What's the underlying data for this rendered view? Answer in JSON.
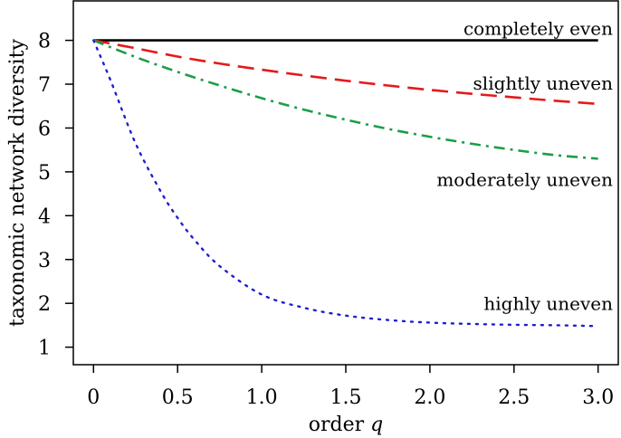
{
  "chart_data": {
    "type": "line",
    "xlabel_prefix": "order ",
    "xlabel_var": "q",
    "ylabel": "taxonomic network diversity",
    "xlim": [
      -0.12,
      3.12
    ],
    "ylim": [
      0.6,
      8.9
    ],
    "x_ticks": [
      0,
      0.5,
      1.0,
      1.5,
      2.0,
      2.5,
      3.0
    ],
    "x_tick_labels": [
      "0",
      "0.5",
      "1.0",
      "1.5",
      "2.0",
      "2.5",
      "3.0"
    ],
    "y_ticks": [
      1,
      2,
      3,
      4,
      5,
      6,
      7,
      8
    ],
    "y_tick_labels": [
      "1",
      "2",
      "3",
      "4",
      "5",
      "6",
      "7",
      "8"
    ],
    "grid": false,
    "legend": "none",
    "series": [
      {
        "label": "completely even",
        "color": "#000000",
        "dash": "solid",
        "x": [
          0,
          0.25,
          0.5,
          0.75,
          1.0,
          1.25,
          1.5,
          1.75,
          2.0,
          2.25,
          2.5,
          2.75,
          3.0
        ],
        "y": [
          8,
          8,
          8,
          8,
          8,
          8,
          8,
          8,
          8,
          8,
          8,
          8,
          8
        ]
      },
      {
        "label": "slightly uneven",
        "color": "#e41a1c",
        "dash": "dashed",
        "x": [
          0,
          0.25,
          0.5,
          0.75,
          1.0,
          1.25,
          1.5,
          1.75,
          2.0,
          2.25,
          2.5,
          2.75,
          3.0
        ],
        "y": [
          8.0,
          7.82,
          7.63,
          7.47,
          7.33,
          7.2,
          7.08,
          6.97,
          6.87,
          6.78,
          6.7,
          6.62,
          6.55
        ]
      },
      {
        "label": "moderately uneven",
        "color": "#1b9e4a",
        "dash": "dashdot",
        "x": [
          0,
          0.25,
          0.5,
          0.75,
          1.0,
          1.25,
          1.5,
          1.75,
          2.0,
          2.25,
          2.5,
          2.75,
          3.0
        ],
        "y": [
          8.0,
          7.62,
          7.28,
          6.97,
          6.68,
          6.42,
          6.19,
          5.98,
          5.8,
          5.64,
          5.5,
          5.38,
          5.3
        ]
      },
      {
        "label": "highly uneven",
        "color": "#1f1fd0",
        "dash": "dotted",
        "x": [
          0,
          0.1,
          0.25,
          0.4,
          0.5,
          0.6,
          0.75,
          1.0,
          1.25,
          1.5,
          1.75,
          2.0,
          2.25,
          2.5,
          2.75,
          3.0
        ],
        "y": [
          8.0,
          7.1,
          5.65,
          4.55,
          3.95,
          3.45,
          2.85,
          2.2,
          1.9,
          1.72,
          1.62,
          1.56,
          1.53,
          1.51,
          1.5,
          1.48
        ]
      }
    ]
  }
}
